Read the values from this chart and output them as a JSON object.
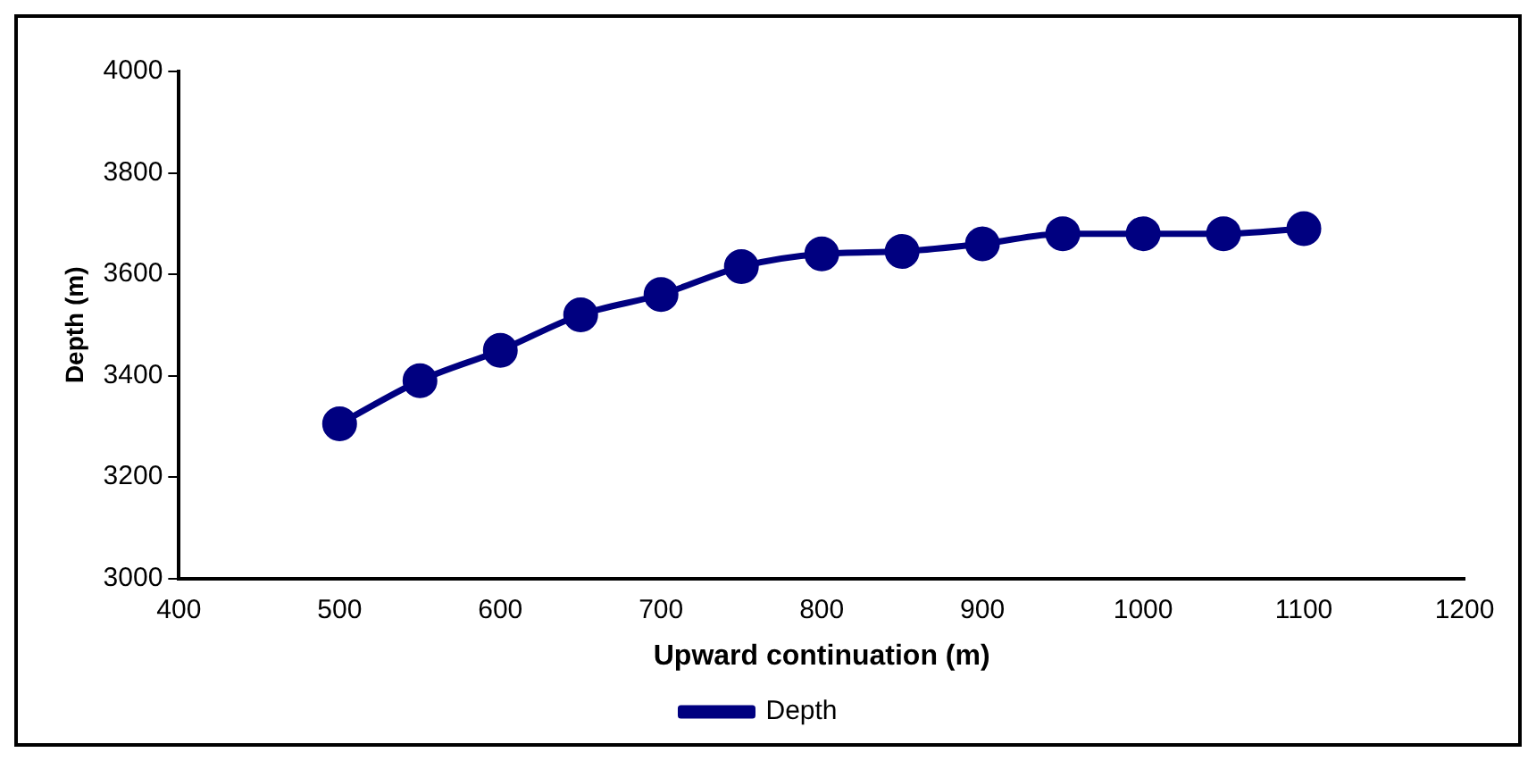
{
  "chart_data": {
    "type": "line",
    "xlabel": "Upward continuation (m)",
    "ylabel": "Depth (m)",
    "x": [
      500,
      550,
      600,
      650,
      700,
      750,
      800,
      850,
      900,
      950,
      1000,
      1050,
      1100
    ],
    "series": [
      {
        "name": "Depth",
        "color": "#000080",
        "values": [
          3305,
          3390,
          3450,
          3520,
          3560,
          3615,
          3640,
          3645,
          3660,
          3680,
          3680,
          3680,
          3690
        ]
      }
    ],
    "xlim": [
      400,
      1200
    ],
    "xticks": [
      400,
      500,
      600,
      700,
      800,
      900,
      1000,
      1100,
      1200
    ],
    "ylim": [
      3000,
      4000
    ],
    "yticks": [
      3000,
      3200,
      3400,
      3600,
      3800,
      4000
    ],
    "grid": false,
    "legend": "bottom",
    "marker": "circle",
    "line_style": "solid"
  }
}
